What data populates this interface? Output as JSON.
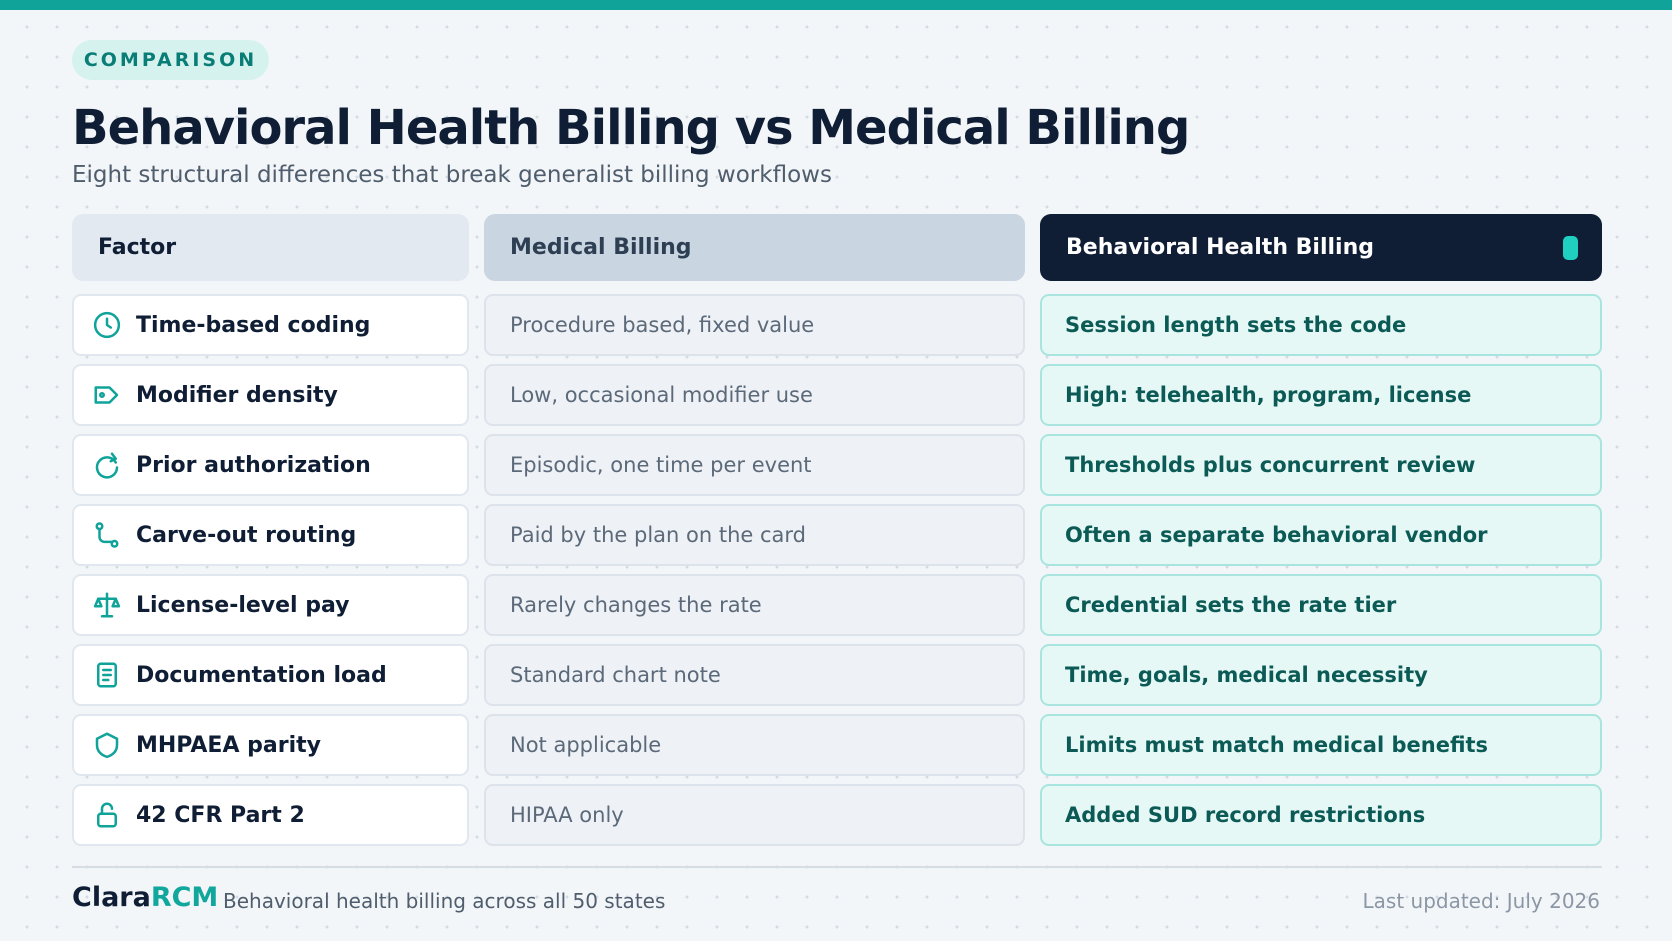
{
  "header": {
    "badge": "COMPARISON",
    "title": "Behavioral Health Billing vs Medical Billing",
    "subtitle": "Eight structural differences that break generalist billing workflows"
  },
  "table": {
    "columns": [
      "Factor",
      "Medical Billing",
      "Behavioral Health Billing"
    ],
    "rows": [
      {
        "icon": "clock-icon",
        "factor": "Time-based coding",
        "medical": "Procedure based, fixed value",
        "behavioral": "Session length sets the code"
      },
      {
        "icon": "tag-icon",
        "factor": "Modifier density",
        "medical": "Low, occasional modifier use",
        "behavioral": "High: telehealth, program, license"
      },
      {
        "icon": "refresh-icon",
        "factor": "Prior authorization",
        "medical": "Episodic, one time per event",
        "behavioral": "Thresholds plus concurrent review"
      },
      {
        "icon": "route-icon",
        "factor": "Carve-out routing",
        "medical": "Paid by the plan on the card",
        "behavioral": "Often a separate behavioral vendor"
      },
      {
        "icon": "scale-icon",
        "factor": "License-level pay",
        "medical": "Rarely changes the rate",
        "behavioral": "Credential sets the rate tier"
      },
      {
        "icon": "document-icon",
        "factor": "Documentation load",
        "medical": "Standard chart note",
        "behavioral": "Time, goals, medical necessity"
      },
      {
        "icon": "shield-icon",
        "factor": "MHPAEA parity",
        "medical": "Not applicable",
        "behavioral": "Limits must match medical benefits"
      },
      {
        "icon": "unlock-icon",
        "factor": "42 CFR Part 2",
        "medical": "HIPAA only",
        "behavioral": "Added SUD record restrictions"
      }
    ]
  },
  "footer": {
    "brand_primary": "Clara",
    "brand_accent": "RCM",
    "tagline": "Behavioral health billing across all 50 states",
    "updated": "Last updated: July 2026"
  },
  "colors": {
    "accent": "#0fa39a",
    "navy": "#0f1e35",
    "highlight_bg": "#e6f8f6",
    "highlight_text": "#0c5a55"
  }
}
